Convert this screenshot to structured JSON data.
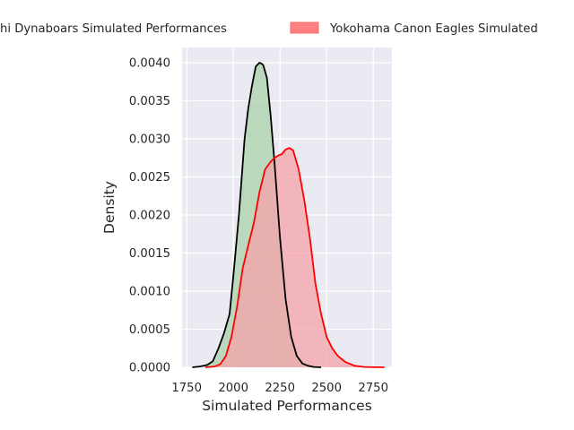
{
  "chart_data": {
    "type": "area",
    "xlabel": "Simulated Performances",
    "ylabel": "Density",
    "xlim": [
      1725,
      2850
    ],
    "ylim": [
      0,
      0.0042
    ],
    "xticks": [
      1750,
      2000,
      2250,
      2500,
      2750
    ],
    "yticks": [
      0.0,
      0.0005,
      0.001,
      0.0015,
      0.002,
      0.0025,
      0.003,
      0.0035,
      0.004
    ],
    "xtick_labels": [
      "1750",
      "2000",
      "2250",
      "2500",
      "2750"
    ],
    "ytick_labels": [
      "0.0000",
      "0.0005",
      "0.0010",
      "0.0015",
      "0.0020",
      "0.0025",
      "0.0030",
      "0.0035",
      "0.0040"
    ],
    "grid": true,
    "legend_position": "top (clipped)",
    "series": [
      {
        "name": "hi Dynaboars Simulated Performances",
        "line_color": "#000000",
        "fill_color": "#a9d1a9",
        "x": [
          1780,
          1820,
          1860,
          1890,
          1920,
          1950,
          1980,
          2000,
          2030,
          2060,
          2080,
          2100,
          2120,
          2140,
          2150,
          2160,
          2180,
          2200,
          2220,
          2250,
          2280,
          2310,
          2340,
          2370,
          2400,
          2430,
          2470
        ],
        "values": [
          0.0,
          1e-05,
          3e-05,
          8e-05,
          0.00025,
          0.00045,
          0.0007,
          0.0012,
          0.002,
          0.003,
          0.0034,
          0.0037,
          0.00395,
          0.004,
          0.00399,
          0.00397,
          0.0038,
          0.0033,
          0.0027,
          0.0017,
          0.0009,
          0.0004,
          0.00015,
          5e-05,
          2e-05,
          5e-06,
          0.0
        ]
      },
      {
        "name": "Yokohama Canon Eagles Simulated",
        "line_color": "#ff0000",
        "fill_color": "#f5a3aa",
        "x": [
          1850,
          1900,
          1930,
          1960,
          1990,
          2020,
          2050,
          2080,
          2110,
          2140,
          2170,
          2200,
          2220,
          2240,
          2260,
          2280,
          2300,
          2320,
          2350,
          2380,
          2410,
          2440,
          2470,
          2500,
          2530,
          2560,
          2600,
          2650,
          2700,
          2750,
          2810
        ],
        "values": [
          0.0,
          1e-05,
          4e-05,
          0.00015,
          0.0004,
          0.0008,
          0.0013,
          0.0016,
          0.0019,
          0.0023,
          0.0026,
          0.0027,
          0.00275,
          0.00278,
          0.0028,
          0.00286,
          0.00288,
          0.00285,
          0.0026,
          0.0022,
          0.0017,
          0.0011,
          0.0007,
          0.0004,
          0.00025,
          0.00015,
          7e-05,
          2e-05,
          5e-06,
          1e-06,
          0.0
        ]
      }
    ]
  }
}
